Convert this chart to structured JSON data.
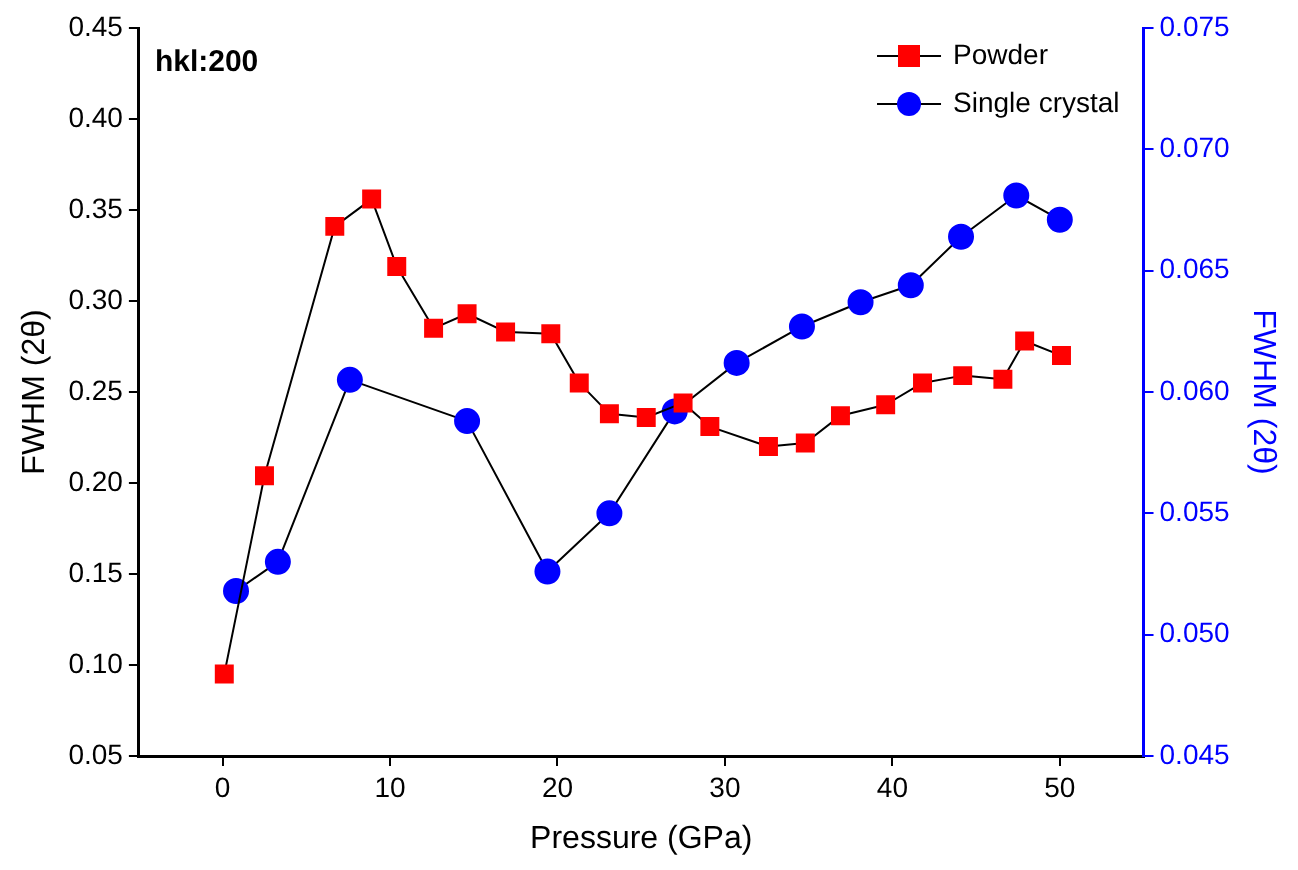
{
  "chart_data": {
    "type": "line",
    "xlabel": "Pressure (GPa)",
    "ylabel": "FWHM (2θ)",
    "y2label": "FWHM (2θ)",
    "annotations": [
      "hkl:200"
    ],
    "xlim": [
      -5,
      55
    ],
    "xticks": [
      0,
      10,
      20,
      30,
      40,
      50
    ],
    "ylim": [
      0.05,
      0.45
    ],
    "yticks": [
      0.05,
      {
        "value": 0.1,
        "label": "0.10"
      },
      0.15,
      {
        "value": 0.2,
        "label": "0.20"
      },
      0.25,
      {
        "value": 0.3,
        "label": "0.30"
      },
      0.35,
      {
        "value": 0.4,
        "label": "0.40"
      },
      0.45
    ],
    "y2lim": [
      0.045,
      0.075
    ],
    "y2ticks": [
      0.045,
      {
        "value": 0.05,
        "label": "0.050"
      },
      0.055,
      {
        "value": 0.06,
        "label": "0.060"
      },
      0.065,
      {
        "value": 0.07,
        "label": "0.070"
      },
      0.075
    ],
    "grid": false,
    "legend": "top right",
    "marker": "square",
    "line_style": "solid",
    "series": [
      {
        "name": "Powder",
        "color": "#ff0000",
        "x": [
          0.1,
          2.5,
          6.7,
          8.9,
          10.4,
          12.6,
          14.6,
          16.9,
          19.6,
          21.3,
          23.1,
          25.3,
          27.5,
          29.1,
          32.6,
          34.8,
          36.9,
          39.6,
          41.8,
          44.2,
          46.6,
          47.9,
          50.1
        ],
        "values": [
          0.095,
          0.204,
          0.341,
          0.356,
          0.319,
          0.285,
          0.293,
          0.283,
          0.282,
          0.255,
          0.238,
          0.236,
          0.244,
          0.231,
          0.22,
          0.222,
          0.237,
          0.243,
          0.255,
          0.259,
          0.257,
          0.278,
          0.27
        ]
      },
      {
        "name": "Single crystal",
        "color": "#0000ff",
        "marker": "circle",
        "axis": "y2",
        "x": [
          0.8,
          3.3,
          7.6,
          14.6,
          19.4,
          23.1,
          27,
          30.7,
          34.6,
          38.1,
          41.1,
          44.1,
          47.4,
          50
        ],
        "values": [
          0.0518,
          0.053,
          0.0605,
          0.0588,
          0.0526,
          0.055,
          0.0592,
          0.0612,
          0.0627,
          0.0637,
          0.0644,
          0.0664,
          0.0681,
          0.0671
        ]
      }
    ]
  }
}
